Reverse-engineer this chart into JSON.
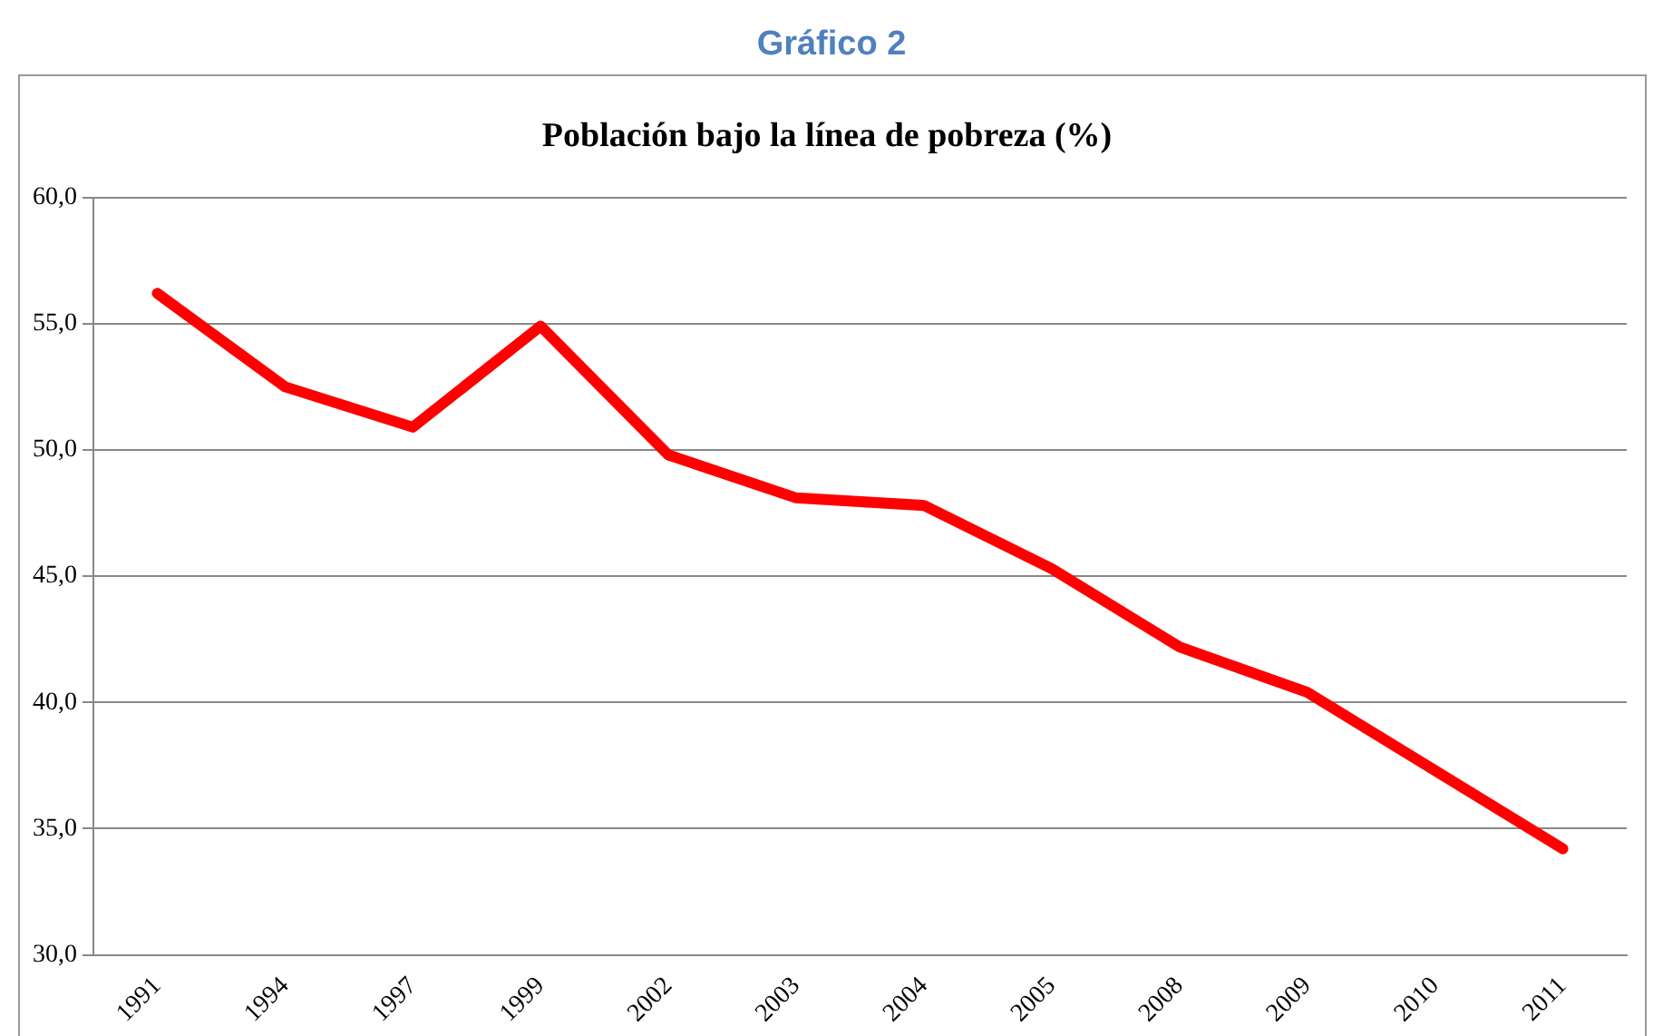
{
  "chart_data": {
    "type": "line",
    "title": "Gráfico 2",
    "subtitle": "Población bajo la línea de pobreza (%)",
    "categories": [
      "1991",
      "1994",
      "1997",
      "1999",
      "2002",
      "2003",
      "2004",
      "2005",
      "2008",
      "2009",
      "2010",
      "2011"
    ],
    "series": [
      {
        "color": "#ff0000",
        "values": [
          56.2,
          52.5,
          50.9,
          54.9,
          49.8,
          48.1,
          47.8,
          45.3,
          42.2,
          40.4,
          37.3,
          34.2
        ]
      }
    ],
    "ylim": [
      30,
      60
    ],
    "yticks": [
      {
        "value": 30,
        "label": "30,0"
      },
      {
        "value": 35,
        "label": "35,0"
      },
      {
        "value": 40,
        "label": "40,0"
      },
      {
        "value": 45,
        "label": "45,0"
      },
      {
        "value": 50,
        "label": "50,0"
      },
      {
        "value": 55,
        "label": "55,0"
      },
      {
        "value": 60,
        "label": "60,0"
      }
    ],
    "grid": "y",
    "legend": false,
    "marker": "none",
    "line_style": "solid"
  }
}
